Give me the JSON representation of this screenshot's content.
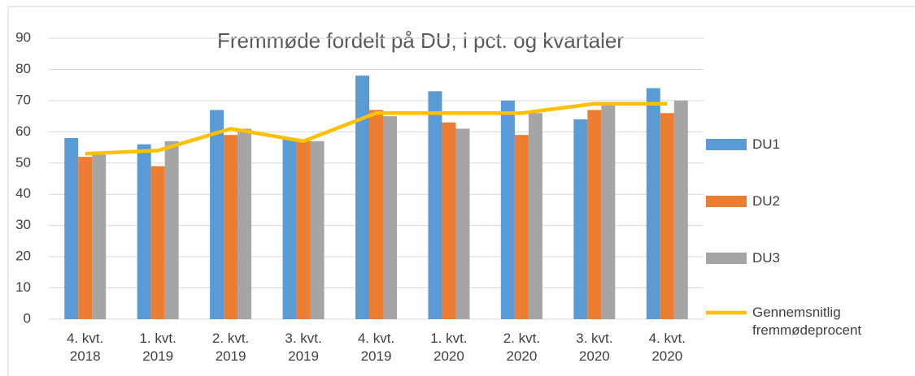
{
  "chart_data": {
    "type": "bar-line",
    "title": "Fremmøde fordelt på DU, i pct. og kvartaler",
    "categories": [
      "4. kvt. 2018",
      "1. kvt. 2019",
      "2. kvt. 2019",
      "3. kvt. 2019",
      "4. kvt. 2019",
      "1. kvt. 2020",
      "2. kvt. 2020",
      "3. kvt. 2020",
      "4. kvt. 2020"
    ],
    "series": [
      {
        "name": "DU1",
        "color": "#5b9bd5",
        "kind": "bar",
        "values": [
          58,
          56,
          67,
          58,
          78,
          73,
          70,
          64,
          74
        ]
      },
      {
        "name": "DU2",
        "color": "#ed7d31",
        "kind": "bar",
        "values": [
          52,
          49,
          59,
          57,
          67,
          63,
          59,
          67,
          66
        ]
      },
      {
        "name": "DU3",
        "color": "#a5a5a5",
        "kind": "bar",
        "values": [
          53,
          57,
          61,
          57,
          65,
          61,
          66,
          69,
          70
        ]
      },
      {
        "name": "Gennemsnitlig fremmødeprocent",
        "color": "#ffc000",
        "kind": "line",
        "values": [
          53,
          54,
          61,
          57,
          66,
          66,
          66,
          69,
          69
        ]
      }
    ],
    "ylim": [
      0,
      90
    ],
    "yticks": [
      0,
      10,
      20,
      30,
      40,
      50,
      60,
      70,
      80,
      90
    ],
    "grid": true,
    "legend": "right"
  }
}
